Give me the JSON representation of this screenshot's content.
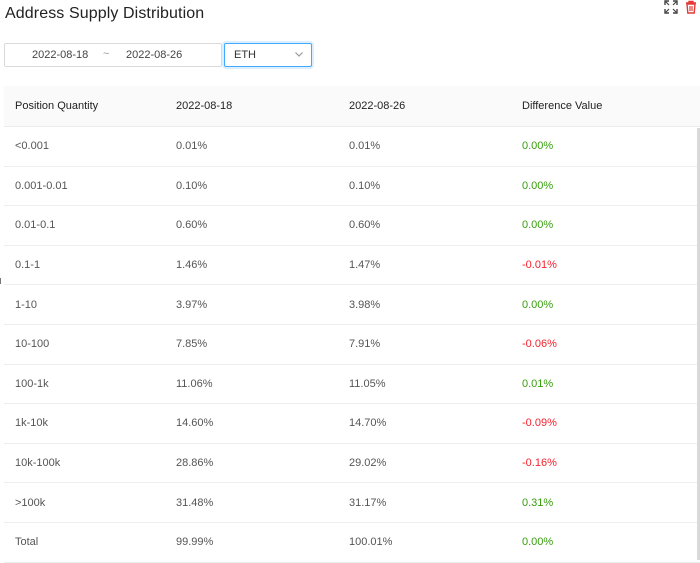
{
  "header": {
    "title": "Address Supply Distribution",
    "icons": [
      "fullscreen-icon",
      "delete-icon"
    ]
  },
  "filters": {
    "date_start": "2022-08-18",
    "date_separator": "~",
    "date_end": "2022-08-26",
    "coin_select": "ETH"
  },
  "table": {
    "columns": [
      "Position Quantity",
      "2022-08-18",
      "2022-08-26",
      "Difference Value"
    ],
    "rows": [
      {
        "range": "<0.001",
        "start": "0.01%",
        "end": "0.01%",
        "diff": "0.00%",
        "trend": "zero"
      },
      {
        "range": "0.001-0.01",
        "start": "0.10%",
        "end": "0.10%",
        "diff": "0.00%",
        "trend": "zero"
      },
      {
        "range": "0.01-0.1",
        "start": "0.60%",
        "end": "0.60%",
        "diff": "0.00%",
        "trend": "zero"
      },
      {
        "range": "0.1-1",
        "start": "1.46%",
        "end": "1.47%",
        "diff": "-0.01%",
        "trend": "neg"
      },
      {
        "range": "1-10",
        "start": "3.97%",
        "end": "3.98%",
        "diff": "0.00%",
        "trend": "zero"
      },
      {
        "range": "10-100",
        "start": "7.85%",
        "end": "7.91%",
        "diff": "-0.06%",
        "trend": "neg"
      },
      {
        "range": "100-1k",
        "start": "11.06%",
        "end": "11.05%",
        "diff": "0.01%",
        "trend": "pos"
      },
      {
        "range": "1k-10k",
        "start": "14.60%",
        "end": "14.70%",
        "diff": "-0.09%",
        "trend": "neg"
      },
      {
        "range": "10k-100k",
        "start": "28.86%",
        "end": "29.02%",
        "diff": "-0.16%",
        "trend": "neg"
      },
      {
        "range": ">100k",
        "start": "31.48%",
        "end": "31.17%",
        "diff": "0.31%",
        "trend": "pos"
      },
      {
        "range": "Total",
        "start": "99.99%",
        "end": "100.01%",
        "diff": "0.00%",
        "trend": "zero"
      }
    ]
  },
  "colors": {
    "positive": "#389e0d",
    "negative": "#f5222d",
    "accent_border": "#40a9ff"
  }
}
